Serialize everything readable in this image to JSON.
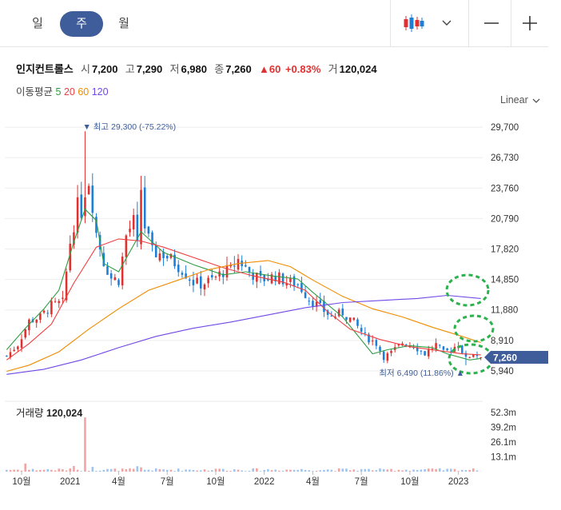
{
  "period_tabs": [
    {
      "label": "일",
      "active": false
    },
    {
      "label": "주",
      "active": true
    },
    {
      "label": "월",
      "active": false
    }
  ],
  "toolbar": {
    "chart_type_icon": "candlestick-icon",
    "dropdown_icon": "chevron-down-icon",
    "zoom_out_icon": "minus-icon",
    "zoom_in_icon": "plus-icon"
  },
  "stock": {
    "name": "인지컨트롤스",
    "open_label": "시",
    "open": "7,200",
    "high_label": "고",
    "high": "7,290",
    "low_label": "저",
    "low": "6,980",
    "close_label": "종",
    "close": "7,260",
    "change": "▲60",
    "change_pct": "+0.83%",
    "volume_label": "거",
    "volume": "120,024"
  },
  "moving_average": {
    "label": "이동평균",
    "periods": [
      "5",
      "20",
      "60",
      "120"
    ],
    "colors": [
      "#2f9e44",
      "#f03e3e",
      "#f08c00",
      "#7048e8"
    ]
  },
  "scale_label": "Linear",
  "price_badge": "7,260",
  "annotations": {
    "max_label": "▼ 최고 29,300 (-75.22%)",
    "min_label": "최저 6,490 (11.86%) ▲"
  },
  "volume_panel": {
    "title": "거래량",
    "value": "120,024",
    "y_ticks": [
      "52.3m",
      "39.2m",
      "26.1m",
      "13.1m"
    ]
  },
  "chart_data": {
    "type": "candlestick",
    "price_axis": {
      "ticks": [
        29700,
        26730,
        23760,
        20790,
        17820,
        14850,
        11880,
        8910,
        5940
      ],
      "ylim": [
        5000,
        31500
      ]
    },
    "x_ticks": [
      "10월",
      "2021",
      "4월",
      "7월",
      "10월",
      "2022",
      "4월",
      "7월",
      "10월",
      "2023"
    ],
    "up_color": "#e03131",
    "down_color": "#1c7ed6",
    "series": [
      {
        "name": "5",
        "color": "#2f9e44",
        "values": [
          [
            0,
            8000
          ],
          [
            5,
            10100
          ],
          [
            10,
            12000
          ],
          [
            14,
            13800
          ],
          [
            18,
            18500
          ],
          [
            21,
            21700
          ],
          [
            24,
            20600
          ],
          [
            26,
            16400
          ],
          [
            30,
            15600
          ],
          [
            36,
            19500
          ],
          [
            42,
            17500
          ],
          [
            50,
            16300
          ],
          [
            58,
            15300
          ],
          [
            64,
            15600
          ],
          [
            71,
            15200
          ],
          [
            78,
            14900
          ],
          [
            82,
            13600
          ],
          [
            90,
            11200
          ],
          [
            98,
            7600
          ],
          [
            102,
            8000
          ],
          [
            108,
            8400
          ],
          [
            114,
            8200
          ],
          [
            118,
            7600
          ],
          [
            124,
            7000
          ],
          [
            127,
            7150
          ]
        ]
      },
      {
        "name": "20",
        "color": "#f03e3e",
        "values": [
          [
            0,
            7000
          ],
          [
            6,
            8600
          ],
          [
            12,
            10500
          ],
          [
            18,
            14500
          ],
          [
            24,
            18000
          ],
          [
            30,
            18800
          ],
          [
            36,
            18600
          ],
          [
            42,
            18000
          ],
          [
            50,
            17000
          ],
          [
            58,
            16000
          ],
          [
            66,
            15200
          ],
          [
            74,
            14600
          ],
          [
            80,
            13800
          ],
          [
            86,
            11700
          ],
          [
            92,
            10000
          ],
          [
            100,
            9000
          ],
          [
            108,
            8300
          ],
          [
            116,
            7900
          ],
          [
            122,
            7600
          ],
          [
            127,
            7500
          ]
        ]
      },
      {
        "name": "60",
        "color": "#f08c00",
        "values": [
          [
            0,
            5900
          ],
          [
            6,
            6500
          ],
          [
            14,
            7800
          ],
          [
            22,
            10000
          ],
          [
            30,
            12000
          ],
          [
            38,
            13800
          ],
          [
            46,
            14800
          ],
          [
            54,
            15800
          ],
          [
            62,
            16400
          ],
          [
            70,
            16700
          ],
          [
            76,
            16100
          ],
          [
            82,
            14800
          ],
          [
            90,
            13200
          ],
          [
            98,
            12000
          ],
          [
            106,
            11200
          ],
          [
            114,
            10200
          ],
          [
            122,
            9300
          ],
          [
            127,
            8700
          ]
        ]
      },
      {
        "name": "120",
        "color": "#7048e8",
        "values": [
          [
            0,
            5600
          ],
          [
            10,
            6100
          ],
          [
            20,
            7000
          ],
          [
            30,
            8200
          ],
          [
            40,
            9300
          ],
          [
            50,
            10100
          ],
          [
            60,
            10700
          ],
          [
            70,
            11400
          ],
          [
            80,
            12100
          ],
          [
            90,
            12600
          ],
          [
            100,
            12800
          ],
          [
            110,
            13000
          ],
          [
            118,
            13300
          ],
          [
            127,
            13000
          ]
        ]
      }
    ],
    "key_points": [
      {
        "label": "high",
        "week_index": 21,
        "value": 29300
      },
      {
        "label": "low",
        "week_index": 123,
        "value": 6490
      },
      {
        "label": "last_close",
        "week_index": 127,
        "value": 7260
      }
    ],
    "volume_axis": {
      "ticks": [
        52.3,
        39.2,
        26.1,
        13.1
      ],
      "unit": "m",
      "ylim": [
        0,
        58
      ]
    }
  }
}
